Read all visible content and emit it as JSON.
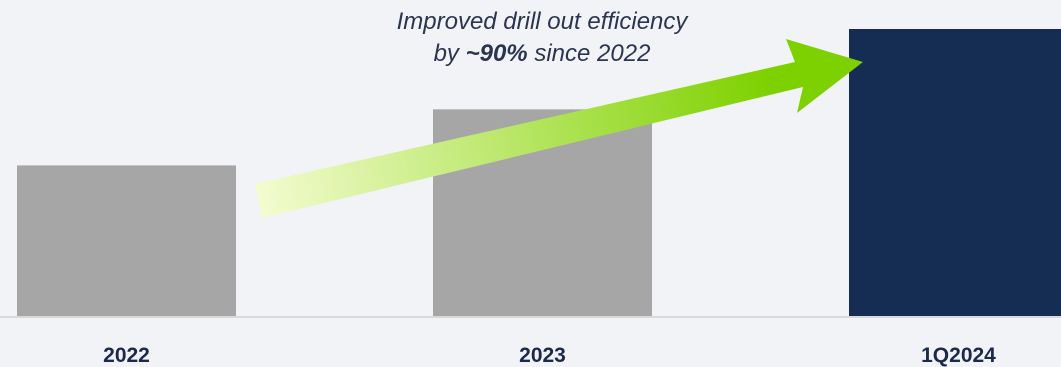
{
  "chart_data": {
    "type": "bar",
    "categories": [
      "2022",
      "2023",
      "1Q2024"
    ],
    "values": [
      1.0,
      1.37,
      1.9
    ],
    "colors": [
      "#a6a6a6",
      "#a6a6a6",
      "#152d52"
    ],
    "ylim": [
      0,
      1.9
    ],
    "grid": false,
    "legend": "none",
    "annotation": {
      "line1": "Improved drill out efficiency",
      "prefix": "by ",
      "highlight": "~90%",
      "suffix": " since 2022"
    },
    "arrow_colors": [
      "#f4fcd0",
      "#7ed100"
    ]
  }
}
